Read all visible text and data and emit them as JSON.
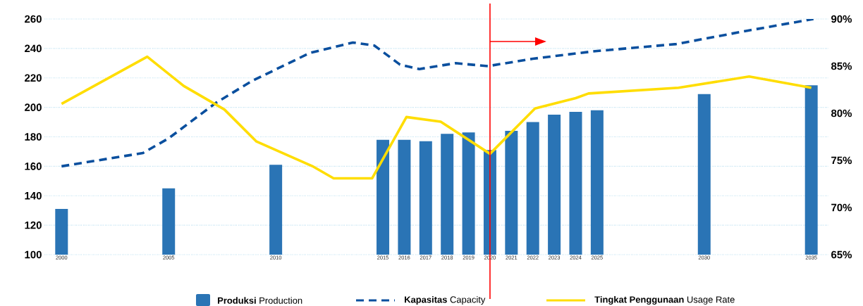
{
  "chart_data": {
    "type": "bar",
    "x": [
      2000,
      2005,
      2010,
      2015,
      2016,
      2017,
      2018,
      2019,
      2020,
      2021,
      2022,
      2023,
      2024,
      2025,
      2030,
      2035
    ],
    "series": [
      {
        "name": "**Produksi** Production",
        "color": "#2a74b5",
        "values": [
          131,
          145,
          161,
          178,
          178,
          177,
          182,
          183,
          171,
          184,
          190,
          195,
          197,
          198,
          209,
          215
        ]
      },
      {
        "name": "**Kapasitas** Capacity",
        "type": "line",
        "line_style": "dashed",
        "color": "#0a4f9e",
        "x": [
          2000,
          2003.8,
          2005,
          2007.2,
          2008.9,
          2011.6,
          2013.6,
          2014.6,
          2015.8,
          2016.7,
          2018.4,
          2019.9,
          2022,
          2024.8,
          2028.7,
          2032,
          2035.1
        ],
        "values": [
          160,
          169,
          179,
          203,
          218,
          237,
          244,
          242,
          229,
          226,
          230,
          228,
          233,
          238,
          243,
          252,
          260
        ]
      },
      {
        "name": "**Tingkat Penggunaan** Usage Rate",
        "type": "line",
        "line_style": "solid",
        "axis": "y2",
        "color": "#ffdd00",
        "x": [
          2000,
          2004,
          2005.7,
          2007.6,
          2009.1,
          2011.7,
          2012.7,
          2014.5,
          2016.1,
          2017.7,
          2020,
          2022.1,
          2024,
          2024.6,
          2028.8,
          2032.1,
          2035
        ],
        "values": [
          81.0,
          86.0,
          82.9,
          80.4,
          77.0,
          74.4,
          73.1,
          73.1,
          79.6,
          79.1,
          75.7,
          80.5,
          81.6,
          82.1,
          82.7,
          83.9,
          82.7
        ]
      }
    ],
    "xlim": [
      1999.2,
      2035.8
    ],
    "xticks": [
      2000,
      2005,
      2010,
      2015,
      2016,
      2017,
      2018,
      2019,
      2020,
      2021,
      2022,
      2023,
      2024,
      2025,
      2030,
      2035
    ],
    "ylim": [
      100,
      260
    ],
    "yticks": [
      100,
      120,
      140,
      160,
      180,
      200,
      220,
      240,
      260
    ],
    "y2lim": [
      65,
      90
    ],
    "y2ticks": [
      {
        "value": 65,
        "label": "65%"
      },
      {
        "value": 70,
        "label": "70%"
      },
      {
        "value": 75,
        "label": "75%"
      },
      {
        "value": 80,
        "label": "80%"
      },
      {
        "value": 85,
        "label": "85%"
      },
      {
        "value": 90,
        "label": "90%"
      }
    ],
    "ref_lines": [
      {
        "axis": "x",
        "value": 2020,
        "color": "#ff0000"
      }
    ],
    "grid": "y",
    "legend": "bottom"
  }
}
